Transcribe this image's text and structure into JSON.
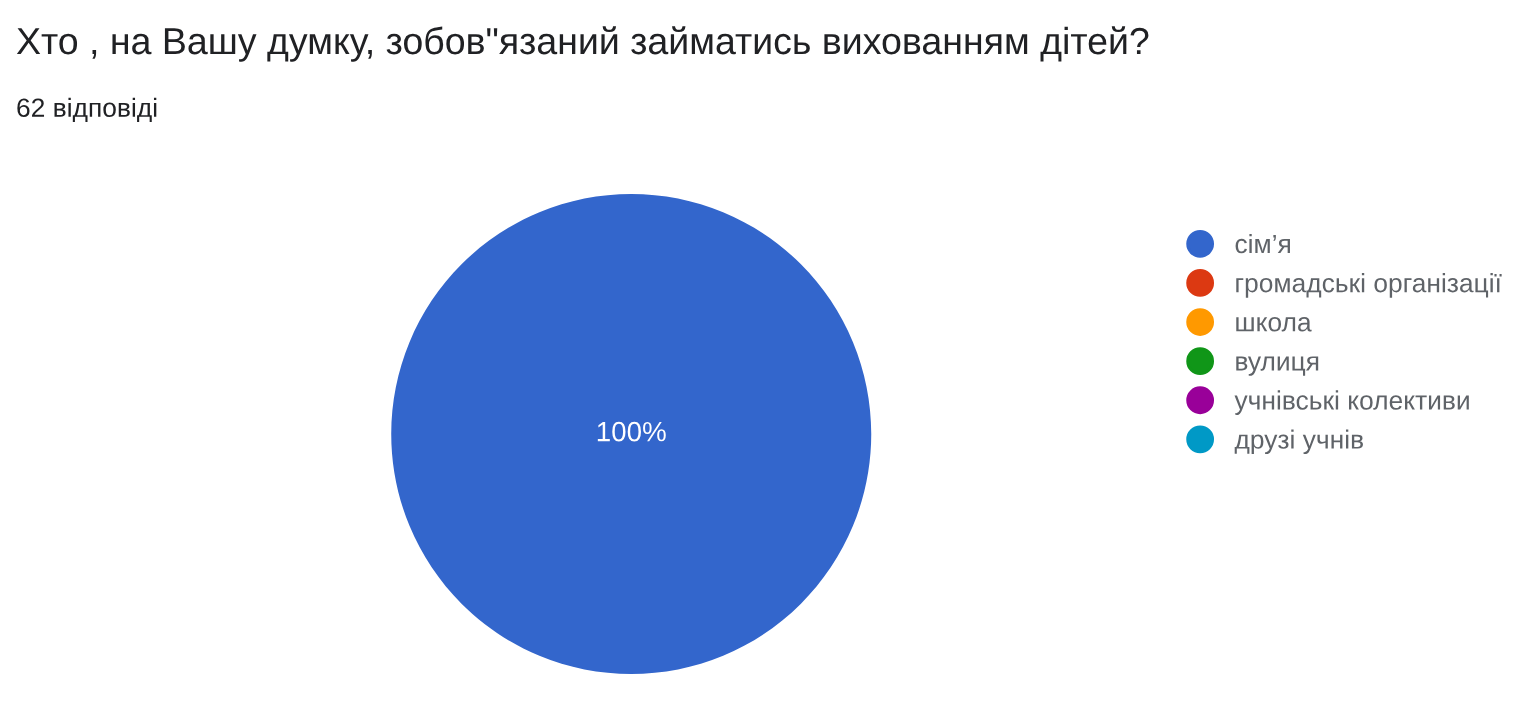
{
  "chart_data": {
    "type": "pie",
    "title": "Хто , на Вашу думку, зобов\"язаний займатись вихованням дітей?",
    "subtitle": "62 відповіді",
    "categories": [
      "сім’я",
      "громадські організації",
      "школа",
      "вулиця",
      "учнівські колективи",
      "друзі учнів"
    ],
    "values": [
      100,
      0,
      0,
      0,
      0,
      0
    ],
    "colors": [
      "#3366cc",
      "#dc3912",
      "#ff9900",
      "#109618",
      "#990099",
      "#0099c6"
    ],
    "value_labels": [
      "100%",
      null,
      null,
      null,
      null,
      null
    ],
    "legend": "right"
  }
}
